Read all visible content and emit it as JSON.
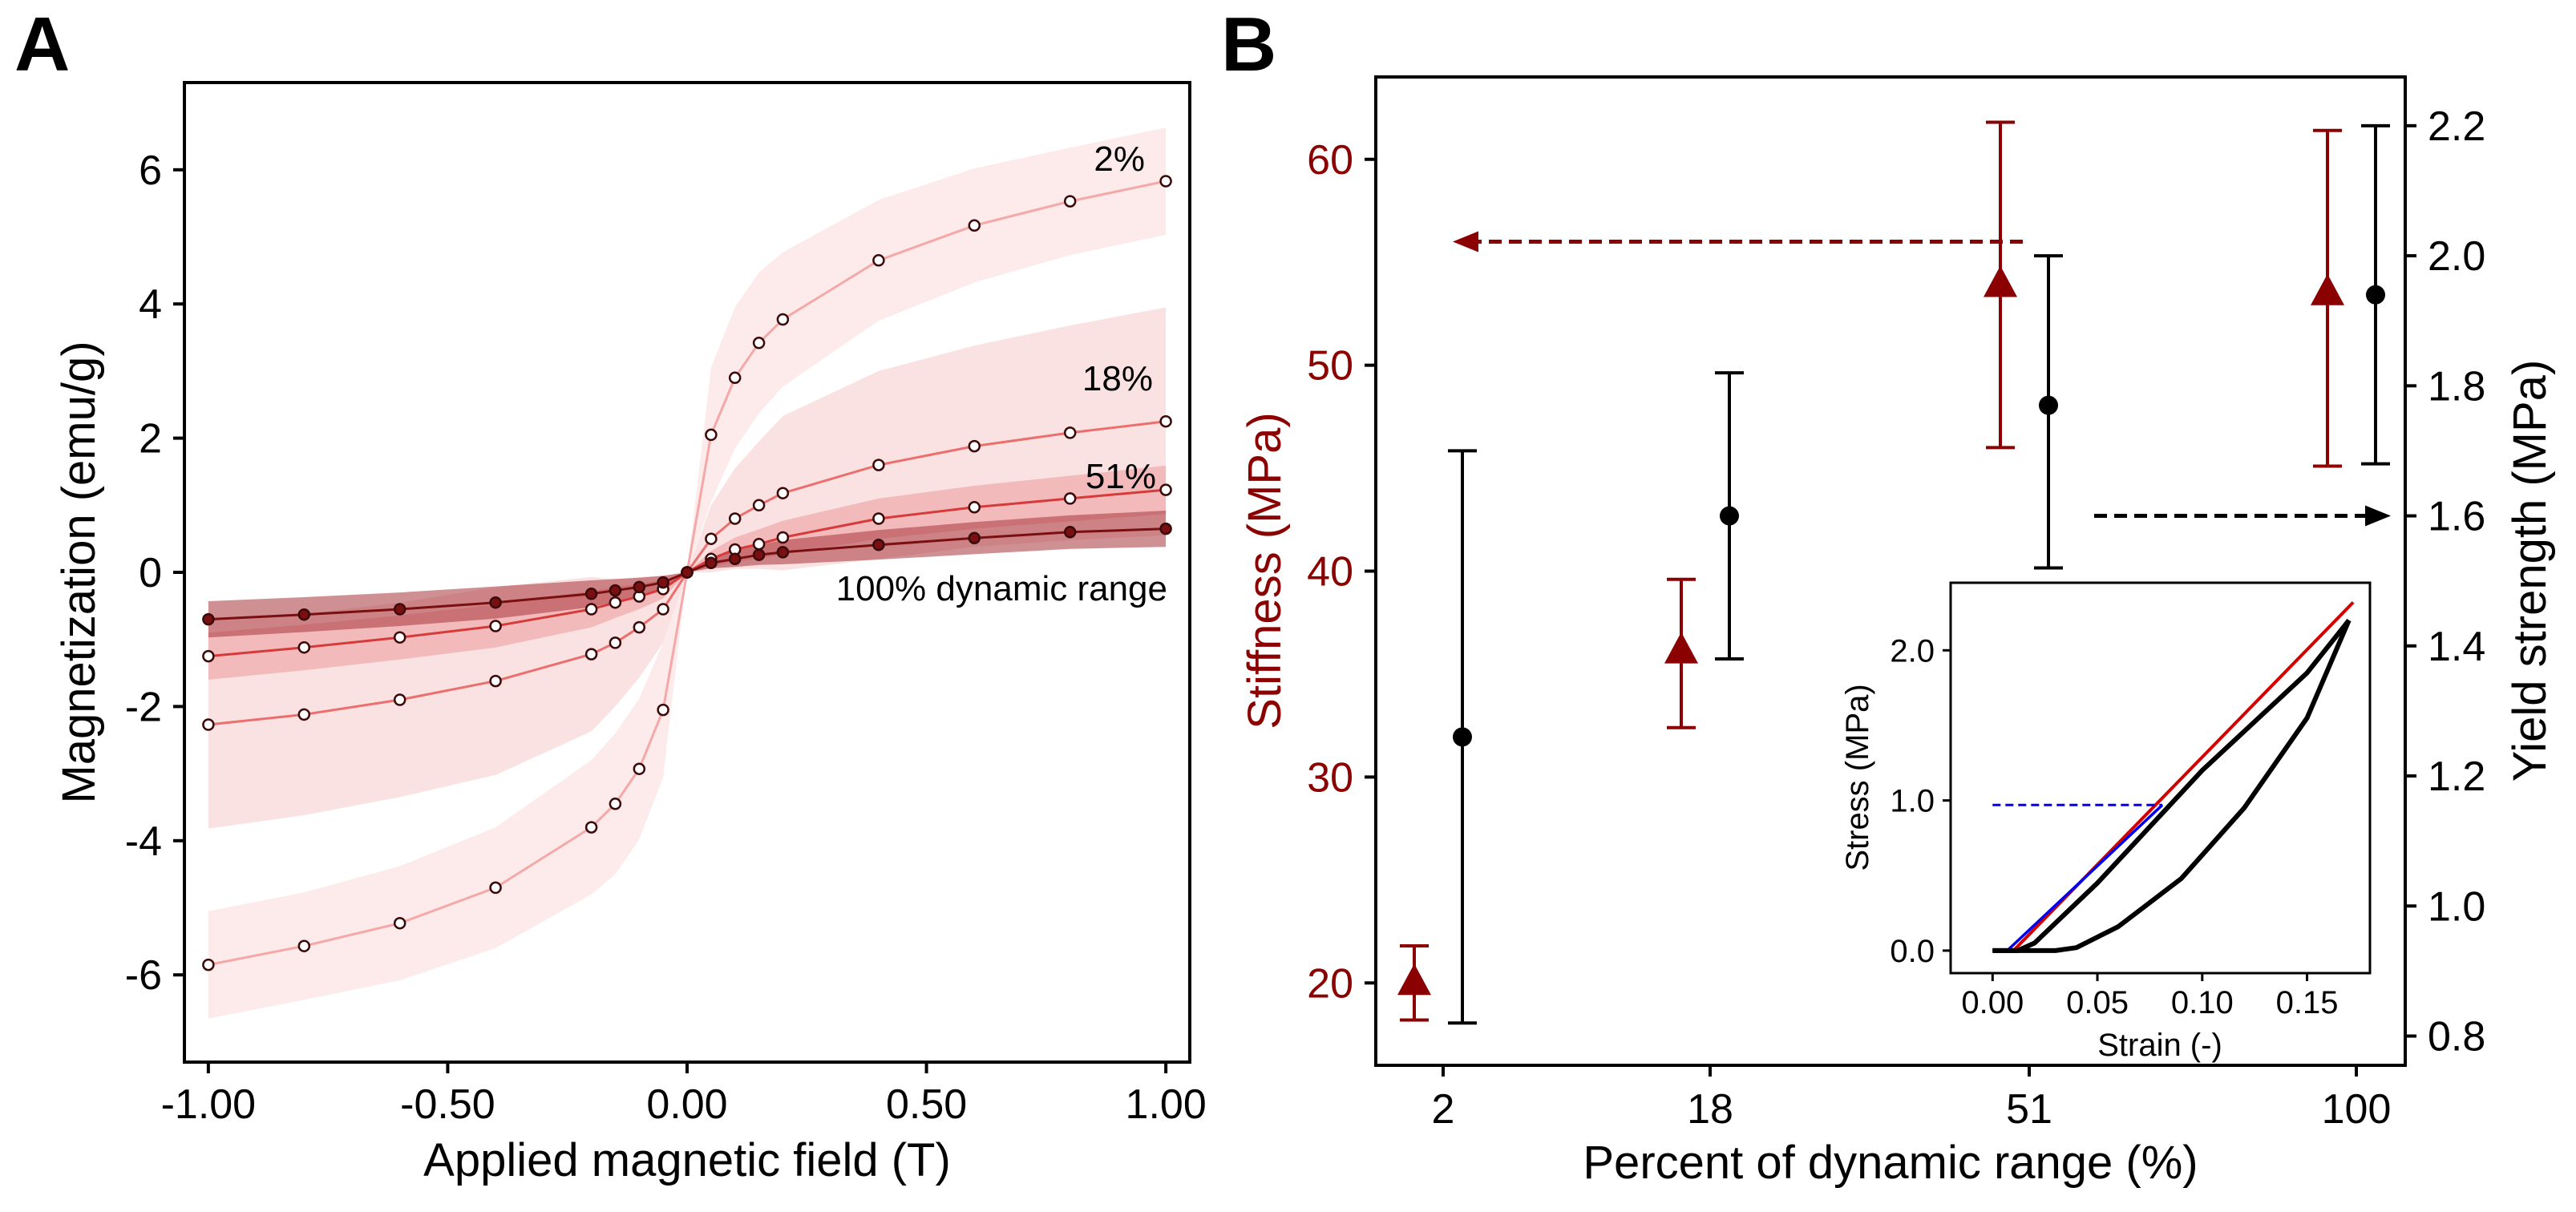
{
  "panels": {
    "a_label": "A",
    "b_label": "B"
  },
  "colors": {
    "axis": "#000000",
    "dark_red": "#8b0000",
    "red": "#d40000",
    "blue": "#0000ee",
    "s100": "#7a0f12",
    "s51": "#d63a3a",
    "s18": "#ec6f6f",
    "s2": "#f4a8a8",
    "band100": "#a8343b",
    "band51": "#e68a8a",
    "band18": "#f5b9b9",
    "band2": "#fbd9d9"
  },
  "chart_data": [
    {
      "type": "line",
      "xlabel": "Applied magnetic field (T)",
      "ylabel": "Magnetization (emu/g)",
      "xlim": [
        -1.05,
        1.05
      ],
      "ylim": [
        -7.3,
        7.3
      ],
      "xticks": [
        -1.0,
        -0.5,
        0.0,
        0.5,
        1.0
      ],
      "xtick_labels": [
        "-1.00",
        "-0.50",
        "0.00",
        "0.50",
        "1.00"
      ],
      "yticks": [
        -6,
        -4,
        -2,
        0,
        2,
        4,
        6
      ],
      "ytick_labels": [
        "-6",
        "-4",
        "-2",
        "0",
        "2",
        "4",
        "6"
      ],
      "grid": false,
      "legend": "none",
      "annotations": [
        "2%",
        "18%",
        "51%",
        "100% dynamic range"
      ],
      "x": [
        -1.0,
        -0.8,
        -0.6,
        -0.4,
        -0.2,
        -0.15,
        -0.1,
        -0.05,
        0.0,
        0.05,
        0.1,
        0.15,
        0.2,
        0.4,
        0.6,
        0.8,
        1.0
      ],
      "series": [
        {
          "values": [
            -0.7,
            -0.63,
            -0.55,
            -0.45,
            -0.32,
            -0.27,
            -0.22,
            -0.15,
            0.0,
            0.14,
            0.2,
            0.26,
            0.3,
            0.41,
            0.51,
            0.6,
            0.65
          ],
          "band_halfwidth": [
            0.27,
            0.26,
            0.25,
            0.24,
            0.2,
            0.17,
            0.14,
            0.1,
            0.0,
            0.08,
            0.12,
            0.15,
            0.18,
            0.22,
            0.24,
            0.25,
            0.27
          ]
        },
        {
          "values": [
            -1.25,
            -1.12,
            -0.97,
            -0.8,
            -0.55,
            -0.45,
            -0.36,
            -0.25,
            0.0,
            0.2,
            0.34,
            0.42,
            0.52,
            0.8,
            0.97,
            1.1,
            1.23
          ],
          "band_halfwidth": [
            0.35,
            0.34,
            0.33,
            0.32,
            0.27,
            0.23,
            0.19,
            0.14,
            0.0,
            0.12,
            0.18,
            0.22,
            0.25,
            0.3,
            0.32,
            0.34,
            0.36
          ]
        },
        {
          "values": [
            -2.27,
            -2.12,
            -1.9,
            -1.62,
            -1.22,
            -1.05,
            -0.82,
            -0.55,
            0.0,
            0.5,
            0.8,
            1.0,
            1.18,
            1.6,
            1.88,
            2.08,
            2.25
          ],
          "band_halfwidth": [
            1.55,
            1.5,
            1.45,
            1.4,
            1.15,
            0.95,
            0.75,
            0.5,
            0.0,
            0.5,
            0.75,
            0.95,
            1.15,
            1.4,
            1.5,
            1.6,
            1.7
          ]
        },
        {
          "values": [
            -5.85,
            -5.57,
            -5.23,
            -4.7,
            -3.8,
            -3.45,
            -2.93,
            -2.05,
            0.0,
            2.05,
            2.9,
            3.42,
            3.77,
            4.65,
            5.17,
            5.53,
            5.83
          ],
          "band_halfwidth": [
            0.8,
            0.8,
            0.85,
            0.9,
            1.0,
            1.05,
            1.05,
            1.0,
            0.0,
            1.0,
            1.05,
            1.05,
            1.0,
            0.9,
            0.85,
            0.8,
            0.8
          ]
        }
      ]
    },
    {
      "type": "scatter",
      "xlabel": "Percent of dynamic range (%)",
      "ylabel_left": "Stiffness (MPa)",
      "ylabel_right": "Yield strength (MPa)",
      "categories": [
        "2",
        "18",
        "51",
        "100"
      ],
      "ylim_left": [
        16,
        64
      ],
      "ylim_right": [
        0.755,
        2.275
      ],
      "yticks_left": [
        20,
        30,
        40,
        50,
        60
      ],
      "yticks_right": [
        0.8,
        1.0,
        1.2,
        1.4,
        1.6,
        1.8,
        2.0,
        2.2
      ],
      "ytick_labels_right": [
        "0.8",
        "1.0",
        "1.2",
        "1.4",
        "1.6",
        "1.8",
        "2.0",
        "2.2"
      ],
      "grid": false,
      "legend": "none",
      "series": [
        {
          "axis": "left",
          "marker": "triangle",
          "values": [
            20.0,
            36.1,
            53.9,
            53.5
          ],
          "err_low": [
            18.2,
            32.4,
            46.0,
            45.1
          ],
          "err_high": [
            21.8,
            39.6,
            61.8,
            61.4
          ]
        },
        {
          "axis": "right",
          "marker": "circle",
          "values": [
            1.26,
            1.6,
            1.77,
            1.94
          ],
          "err_low": [
            0.82,
            1.38,
            1.52,
            1.68
          ],
          "err_high": [
            1.7,
            1.82,
            2.0,
            2.2
          ]
        }
      ],
      "annotations": [
        {
          "kind": "dashed-arrow",
          "from_category_index": 2,
          "axis": "left",
          "y": 56,
          "direction": "left"
        },
        {
          "kind": "dashed-arrow",
          "from_category_index": 2,
          "axis": "right",
          "y": 1.6,
          "direction": "right"
        }
      ],
      "inset": {
        "type": "line",
        "xlabel": "Strain (-)",
        "ylabel": "Stress (MPa)",
        "xlim": [
          -0.02,
          0.18
        ],
        "ylim": [
          -0.15,
          2.45
        ],
        "xticks": [
          0.0,
          0.05,
          0.1,
          0.15
        ],
        "xtick_labels": [
          "0.00",
          "0.05",
          "0.10",
          "0.15"
        ],
        "yticks": [
          0.0,
          1.0,
          2.0
        ],
        "ytick_labels": [
          "0.0",
          "1.0",
          "2.0"
        ],
        "curves": [
          {
            "name": "red",
            "x": [
              0.0,
              0.01,
              0.172
            ],
            "y": [
              0.0,
              0.0,
              2.32
            ]
          },
          {
            "name": "blue",
            "x": [
              0.007,
              0.081
            ],
            "y": [
              0.0,
              0.97
            ]
          },
          {
            "name": "dashed",
            "x": [
              0.0,
              0.081
            ],
            "y": [
              0.97,
              0.97
            ]
          },
          {
            "name": "loading",
            "x": [
              0.0,
              0.012,
              0.02,
              0.05,
              0.1,
              0.15,
              0.17
            ],
            "y": [
              0.0,
              0.0,
              0.05,
              0.45,
              1.2,
              1.85,
              2.2
            ]
          },
          {
            "name": "unloading",
            "x": [
              0.17,
              0.15,
              0.12,
              0.09,
              0.06,
              0.04,
              0.03,
              0.02,
              0.0
            ],
            "y": [
              2.2,
              1.55,
              0.95,
              0.48,
              0.16,
              0.02,
              0.0,
              0.0,
              0.0
            ]
          }
        ]
      }
    }
  ]
}
